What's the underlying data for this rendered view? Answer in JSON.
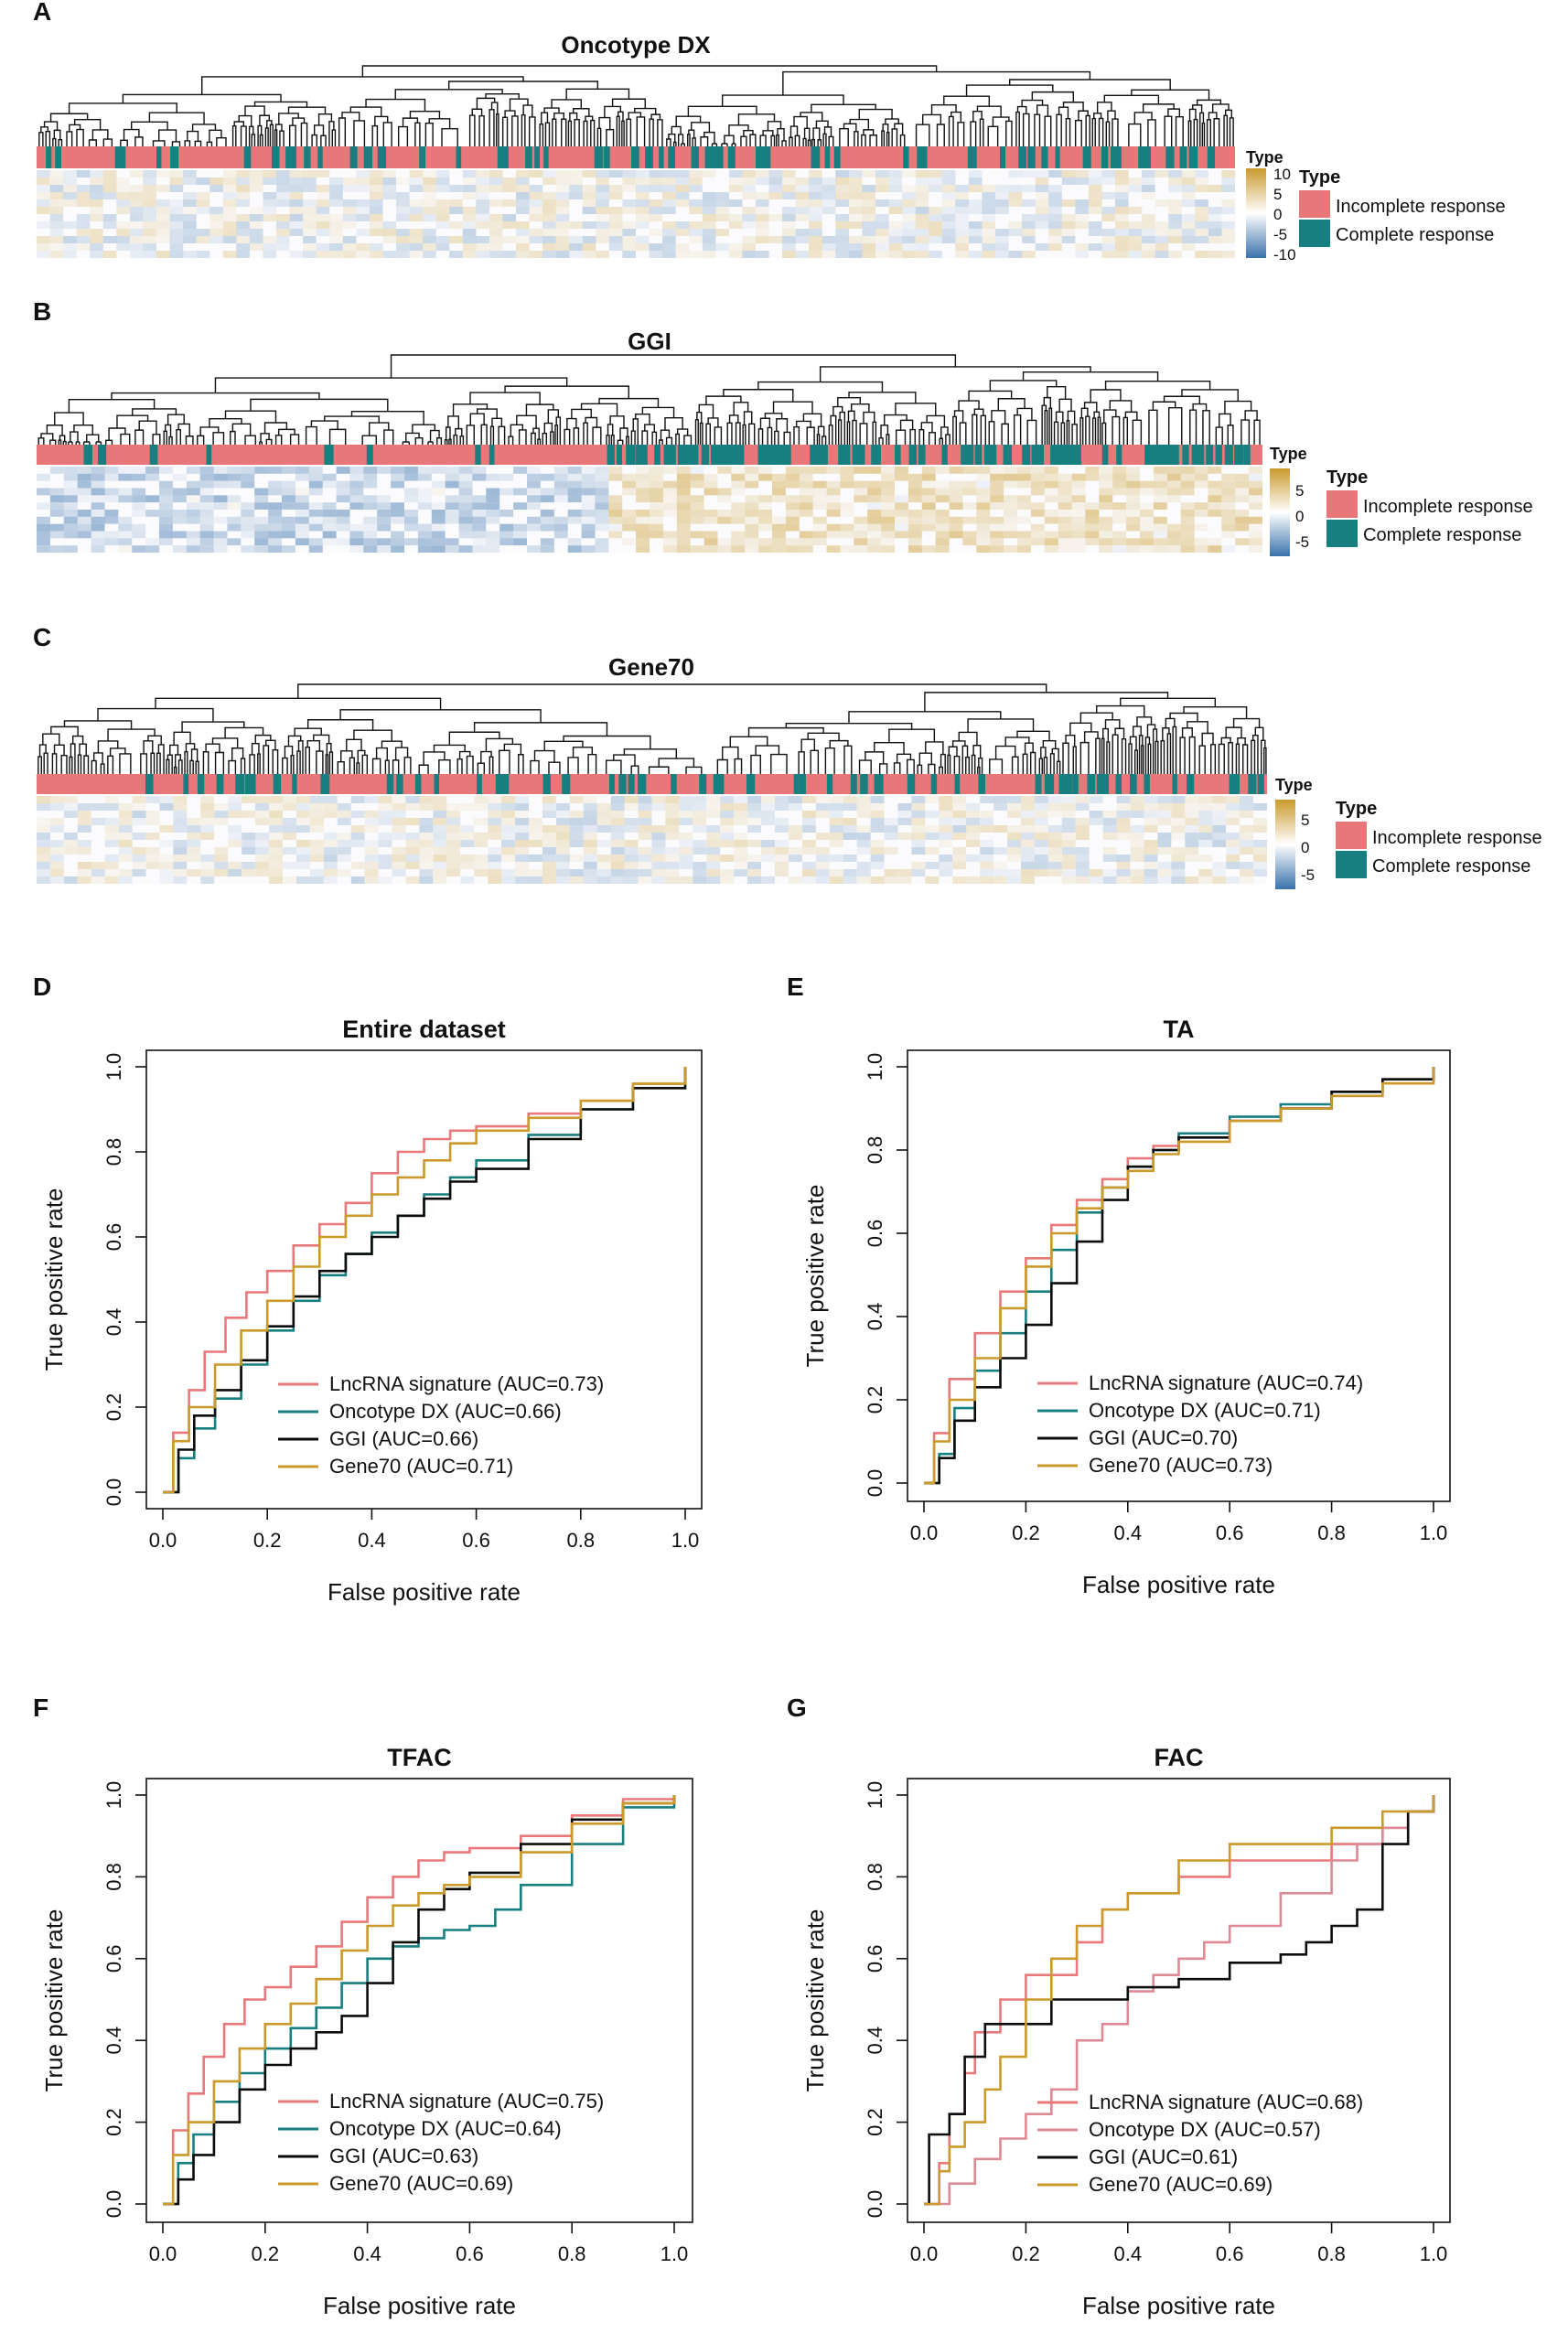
{
  "colors": {
    "lncrna": "#e8787a",
    "oncotype": "#187f80",
    "ggi": "#0c0c0c",
    "gene70": "#cc9a2a",
    "incomplete": "#e8777a",
    "complete": "#187f80",
    "heat_high": "#c99a2c",
    "heat_mid": "#ffffff",
    "heat_low": "#3a72ab"
  },
  "heatmaps": [
    {
      "panel": "A",
      "title": "Oncotype DX",
      "scale_title": "Type",
      "scale_ticks": [
        "10",
        "5",
        "0",
        "-5",
        "-10"
      ],
      "legend_title": "Type",
      "legend_items": [
        "Incomplete response",
        "Complete response"
      ]
    },
    {
      "panel": "B",
      "title": "GGI",
      "scale_title": "Type",
      "scale_ticks": [
        "5",
        "0",
        "-5"
      ],
      "legend_title": "Type",
      "legend_items": [
        "Incomplete response",
        "Complete response"
      ]
    },
    {
      "panel": "C",
      "title": "Gene70",
      "scale_title": "Type",
      "scale_ticks": [
        "5",
        "0",
        "-5"
      ],
      "legend_title": "Type",
      "legend_items": [
        "Incomplete response",
        "Complete response"
      ]
    }
  ],
  "chart_data": [
    {
      "type": "line",
      "panel": "D",
      "title": "Entire dataset",
      "xlabel": "False positive rate",
      "ylabel": "True positive rate",
      "xlim": [
        0,
        1
      ],
      "ylim": [
        0,
        1
      ],
      "xticks": [
        "0.0",
        "0.2",
        "0.4",
        "0.6",
        "0.8",
        "1.0"
      ],
      "yticks": [
        "0.0",
        "0.2",
        "0.4",
        "0.6",
        "0.8",
        "1.0"
      ],
      "series": [
        {
          "name": "LncRNA signature",
          "legend": "LncRNA signature (AUC=0.73)",
          "auc": 0.73,
          "color": "lncrna",
          "x": [
            0,
            0.02,
            0.05,
            0.08,
            0.12,
            0.16,
            0.2,
            0.25,
            0.3,
            0.35,
            0.4,
            0.45,
            0.5,
            0.55,
            0.6,
            0.7,
            0.8,
            0.9,
            1.0
          ],
          "y": [
            0,
            0.14,
            0.24,
            0.33,
            0.41,
            0.47,
            0.52,
            0.58,
            0.63,
            0.68,
            0.75,
            0.8,
            0.83,
            0.85,
            0.86,
            0.89,
            0.92,
            0.96,
            1.0
          ]
        },
        {
          "name": "Oncotype DX",
          "legend": "Oncotype DX    (AUC=0.66)",
          "auc": 0.66,
          "color": "oncotype",
          "x": [
            0,
            0.03,
            0.06,
            0.1,
            0.15,
            0.2,
            0.25,
            0.3,
            0.35,
            0.4,
            0.45,
            0.5,
            0.55,
            0.6,
            0.7,
            0.8,
            0.9,
            1.0
          ],
          "y": [
            0,
            0.08,
            0.15,
            0.22,
            0.3,
            0.38,
            0.45,
            0.51,
            0.56,
            0.61,
            0.65,
            0.7,
            0.74,
            0.78,
            0.84,
            0.9,
            0.95,
            1.0
          ]
        },
        {
          "name": "GGI",
          "legend": "GGI     (AUC=0.66)",
          "auc": 0.66,
          "color": "ggi",
          "x": [
            0,
            0.03,
            0.06,
            0.1,
            0.15,
            0.2,
            0.25,
            0.3,
            0.35,
            0.4,
            0.45,
            0.5,
            0.55,
            0.6,
            0.7,
            0.8,
            0.9,
            1.0
          ],
          "y": [
            0,
            0.1,
            0.18,
            0.24,
            0.31,
            0.39,
            0.46,
            0.52,
            0.56,
            0.6,
            0.65,
            0.69,
            0.73,
            0.76,
            0.83,
            0.9,
            0.95,
            1.0
          ]
        },
        {
          "name": "Gene70",
          "legend": "Gene70     (AUC=0.71)",
          "auc": 0.71,
          "color": "gene70",
          "x": [
            0,
            0.02,
            0.05,
            0.1,
            0.15,
            0.2,
            0.25,
            0.3,
            0.35,
            0.4,
            0.45,
            0.5,
            0.55,
            0.6,
            0.7,
            0.8,
            0.9,
            1.0
          ],
          "y": [
            0,
            0.12,
            0.2,
            0.3,
            0.38,
            0.45,
            0.53,
            0.6,
            0.65,
            0.7,
            0.74,
            0.78,
            0.82,
            0.85,
            0.88,
            0.92,
            0.96,
            1.0
          ]
        }
      ]
    },
    {
      "type": "line",
      "panel": "E",
      "title": "TA",
      "xlabel": "False positive rate",
      "ylabel": "True positive rate",
      "xlim": [
        0,
        1
      ],
      "ylim": [
        0,
        1
      ],
      "xticks": [
        "0.0",
        "0.2",
        "0.4",
        "0.6",
        "0.8",
        "1.0"
      ],
      "yticks": [
        "0.0",
        "0.2",
        "0.4",
        "0.6",
        "0.8",
        "1.0"
      ],
      "series": [
        {
          "name": "LncRNA signature",
          "legend": "LncRNA signature (AUC=0.74)",
          "auc": 0.74,
          "color": "lncrna",
          "x": [
            0,
            0.02,
            0.05,
            0.1,
            0.15,
            0.2,
            0.25,
            0.3,
            0.35,
            0.4,
            0.45,
            0.5,
            0.6,
            0.7,
            0.8,
            0.9,
            1.0
          ],
          "y": [
            0,
            0.12,
            0.25,
            0.36,
            0.46,
            0.54,
            0.62,
            0.68,
            0.73,
            0.78,
            0.81,
            0.83,
            0.87,
            0.9,
            0.93,
            0.96,
            1.0
          ]
        },
        {
          "name": "Oncotype DX",
          "legend": "Oncotype DX (AUC=0.71)",
          "auc": 0.71,
          "color": "oncotype",
          "x": [
            0,
            0.03,
            0.06,
            0.1,
            0.15,
            0.2,
            0.25,
            0.3,
            0.35,
            0.4,
            0.45,
            0.5,
            0.6,
            0.7,
            0.8,
            0.9,
            1.0
          ],
          "y": [
            0,
            0.07,
            0.18,
            0.27,
            0.36,
            0.46,
            0.56,
            0.65,
            0.71,
            0.76,
            0.8,
            0.84,
            0.88,
            0.91,
            0.94,
            0.97,
            1.0
          ]
        },
        {
          "name": "GGI",
          "legend": "GGI (AUC=0.70)",
          "auc": 0.7,
          "color": "ggi",
          "x": [
            0,
            0.03,
            0.06,
            0.1,
            0.15,
            0.2,
            0.25,
            0.3,
            0.35,
            0.4,
            0.45,
            0.5,
            0.6,
            0.7,
            0.8,
            0.9,
            1.0
          ],
          "y": [
            0,
            0.06,
            0.15,
            0.23,
            0.3,
            0.38,
            0.48,
            0.58,
            0.68,
            0.76,
            0.8,
            0.83,
            0.87,
            0.9,
            0.94,
            0.97,
            1.0
          ]
        },
        {
          "name": "Gene70",
          "legend": "Gene70 (AUC=0.73)",
          "auc": 0.73,
          "color": "gene70",
          "x": [
            0,
            0.02,
            0.05,
            0.1,
            0.15,
            0.2,
            0.25,
            0.3,
            0.35,
            0.4,
            0.45,
            0.5,
            0.6,
            0.7,
            0.8,
            0.9,
            1.0
          ],
          "y": [
            0,
            0.1,
            0.2,
            0.3,
            0.42,
            0.52,
            0.6,
            0.66,
            0.71,
            0.75,
            0.79,
            0.82,
            0.87,
            0.9,
            0.93,
            0.96,
            1.0
          ]
        }
      ]
    },
    {
      "type": "line",
      "panel": "F",
      "title": "TFAC",
      "xlabel": "False positive rate",
      "ylabel": "True positive rate",
      "xlim": [
        0,
        1
      ],
      "ylim": [
        0,
        1
      ],
      "xticks": [
        "0.0",
        "0.2",
        "0.4",
        "0.6",
        "0.8",
        "1.0"
      ],
      "yticks": [
        "0.0",
        "0.2",
        "0.4",
        "0.6",
        "0.8",
        "1.0"
      ],
      "series": [
        {
          "name": "LncRNA signature",
          "legend": "LncRNA signature (AUC=0.75)",
          "auc": 0.75,
          "color": "lncrna",
          "x": [
            0,
            0.02,
            0.05,
            0.08,
            0.12,
            0.16,
            0.2,
            0.25,
            0.3,
            0.35,
            0.4,
            0.45,
            0.5,
            0.55,
            0.6,
            0.7,
            0.8,
            0.9,
            1.0
          ],
          "y": [
            0,
            0.18,
            0.27,
            0.36,
            0.44,
            0.5,
            0.53,
            0.58,
            0.63,
            0.69,
            0.75,
            0.8,
            0.84,
            0.86,
            0.87,
            0.9,
            0.95,
            0.99,
            1.0
          ]
        },
        {
          "name": "Oncotype DX",
          "legend": "Oncotype DX (AUC=0.64)",
          "auc": 0.64,
          "color": "oncotype",
          "x": [
            0,
            0.03,
            0.06,
            0.1,
            0.15,
            0.2,
            0.25,
            0.3,
            0.35,
            0.4,
            0.45,
            0.5,
            0.55,
            0.6,
            0.65,
            0.7,
            0.8,
            0.9,
            1.0
          ],
          "y": [
            0,
            0.1,
            0.17,
            0.25,
            0.32,
            0.38,
            0.43,
            0.48,
            0.54,
            0.6,
            0.63,
            0.65,
            0.67,
            0.68,
            0.72,
            0.78,
            0.88,
            0.97,
            1.0
          ]
        },
        {
          "name": "GGI",
          "legend": "GGI (AUC=0.63)",
          "auc": 0.63,
          "color": "ggi",
          "x": [
            0,
            0.03,
            0.06,
            0.1,
            0.15,
            0.2,
            0.25,
            0.3,
            0.35,
            0.4,
            0.45,
            0.5,
            0.55,
            0.6,
            0.7,
            0.8,
            0.9,
            1.0
          ],
          "y": [
            0,
            0.06,
            0.12,
            0.2,
            0.28,
            0.34,
            0.38,
            0.42,
            0.46,
            0.54,
            0.64,
            0.72,
            0.77,
            0.81,
            0.88,
            0.94,
            0.98,
            1.0
          ]
        },
        {
          "name": "Gene70",
          "legend": "Gene70 (AUC=0.69)",
          "auc": 0.69,
          "color": "gene70",
          "x": [
            0,
            0.02,
            0.05,
            0.1,
            0.15,
            0.2,
            0.25,
            0.3,
            0.35,
            0.4,
            0.45,
            0.5,
            0.55,
            0.6,
            0.7,
            0.8,
            0.9,
            1.0
          ],
          "y": [
            0,
            0.12,
            0.2,
            0.3,
            0.38,
            0.44,
            0.49,
            0.55,
            0.62,
            0.68,
            0.73,
            0.76,
            0.78,
            0.8,
            0.86,
            0.93,
            0.98,
            1.0
          ]
        }
      ]
    },
    {
      "type": "line",
      "panel": "G",
      "title": "FAC",
      "xlabel": "False positive rate",
      "ylabel": "True positive rate",
      "xlim": [
        0,
        1
      ],
      "ylim": [
        0,
        1
      ],
      "xticks": [
        "0.0",
        "0.2",
        "0.4",
        "0.6",
        "0.8",
        "1.0"
      ],
      "yticks": [
        "0.0",
        "0.2",
        "0.4",
        "0.6",
        "0.8",
        "1.0"
      ],
      "series": [
        {
          "name": "LncRNA signature",
          "legend": "LncRNA signature (AUC=0.68)",
          "auc": 0.68,
          "color": "lncrna",
          "x": [
            0,
            0.03,
            0.05,
            0.08,
            0.1,
            0.15,
            0.2,
            0.25,
            0.3,
            0.35,
            0.4,
            0.5,
            0.55,
            0.6,
            0.7,
            0.8,
            0.9,
            0.95,
            1.0
          ],
          "y": [
            0,
            0.1,
            0.22,
            0.32,
            0.42,
            0.5,
            0.56,
            0.56,
            0.64,
            0.72,
            0.76,
            0.8,
            0.8,
            0.84,
            0.84,
            0.88,
            0.92,
            0.96,
            1.0
          ]
        },
        {
          "name": "Oncotype DX",
          "legend": "Oncotype DX (AUC=0.57)",
          "auc": 0.57,
          "color": "oncotype_pink",
          "x": [
            0,
            0.05,
            0.1,
            0.15,
            0.2,
            0.25,
            0.3,
            0.35,
            0.4,
            0.45,
            0.5,
            0.55,
            0.6,
            0.7,
            0.8,
            0.85,
            0.9,
            0.95,
            1.0
          ],
          "y": [
            0,
            0.05,
            0.11,
            0.16,
            0.22,
            0.28,
            0.4,
            0.44,
            0.52,
            0.56,
            0.6,
            0.64,
            0.68,
            0.76,
            0.84,
            0.88,
            0.92,
            0.96,
            1.0
          ]
        },
        {
          "name": "GGI",
          "legend": "GGI (AUC=0.61)",
          "auc": 0.61,
          "color": "ggi",
          "x": [
            0,
            0.01,
            0.03,
            0.05,
            0.08,
            0.12,
            0.2,
            0.25,
            0.3,
            0.4,
            0.5,
            0.6,
            0.7,
            0.75,
            0.8,
            0.85,
            0.9,
            0.95,
            1.0
          ],
          "y": [
            0,
            0.17,
            0.17,
            0.22,
            0.36,
            0.44,
            0.44,
            0.5,
            0.5,
            0.53,
            0.55,
            0.59,
            0.61,
            0.64,
            0.68,
            0.72,
            0.88,
            0.96,
            1.0
          ]
        },
        {
          "name": "Gene70",
          "legend": "Gene70 (AUC=0.69)",
          "auc": 0.69,
          "color": "gene70",
          "x": [
            0,
            0.03,
            0.05,
            0.08,
            0.12,
            0.15,
            0.2,
            0.25,
            0.3,
            0.35,
            0.4,
            0.5,
            0.6,
            0.7,
            0.8,
            0.9,
            1.0
          ],
          "y": [
            0,
            0.08,
            0.14,
            0.2,
            0.28,
            0.36,
            0.5,
            0.6,
            0.68,
            0.72,
            0.76,
            0.84,
            0.88,
            0.88,
            0.92,
            0.96,
            1.0
          ]
        }
      ]
    }
  ]
}
